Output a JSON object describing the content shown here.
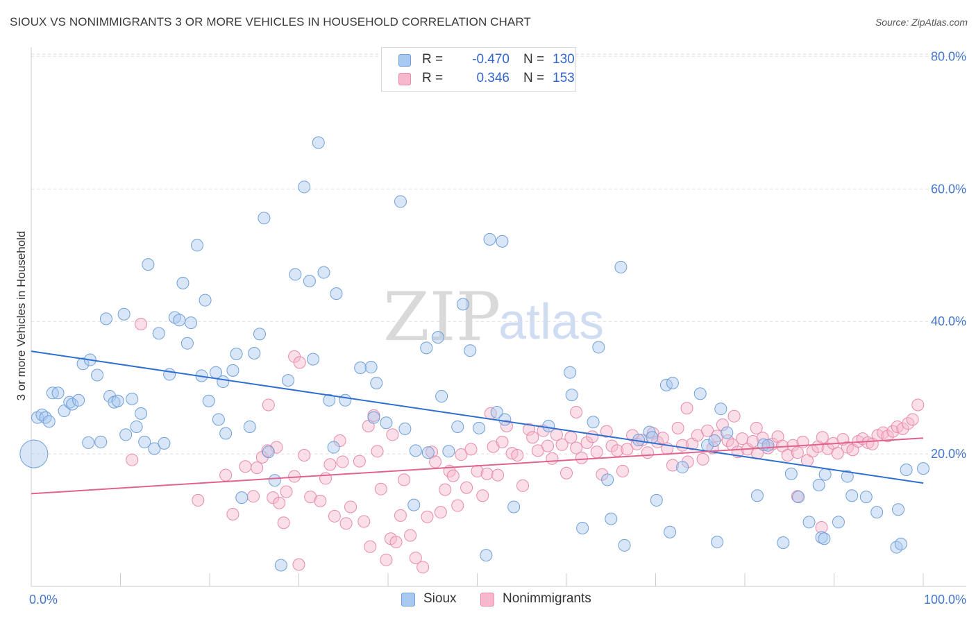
{
  "title": "SIOUX VS NONIMMIGRANTS 3 OR MORE VEHICLES IN HOUSEHOLD CORRELATION CHART",
  "source": "Source: ZipAtlas.com",
  "watermark": {
    "zip": "ZIP",
    "atlas": "atlas"
  },
  "legend": {
    "rows": [
      {
        "r_label": "R =",
        "r_value": "-0.470",
        "n_label": "N =",
        "n_value": "130"
      },
      {
        "r_label": "R =",
        "r_value": "0.346",
        "n_label": "N =",
        "n_value": "153"
      }
    ]
  },
  "bottom_legend": {
    "sioux": "Sioux",
    "nonimmigrants": "Nonimmigrants"
  },
  "colors": {
    "sioux_fill": "#a9c8ef",
    "sioux_stroke": "#6f9fd8",
    "sioux_line": "#2f6fd0",
    "nonimm_fill": "#f6b8cc",
    "nonimm_stroke": "#e88aa8",
    "nonimm_line": "#e0638f",
    "grid": "#dddddd",
    "axis_label": "#4477cc"
  },
  "chart_data": {
    "type": "scatter",
    "title": "SIOUX VS NONIMMIGRANTS 3 OR MORE VEHICLES IN HOUSEHOLD CORRELATION CHART",
    "xlabel": "",
    "ylabel": "3 or more Vehicles in Household",
    "xlim": [
      0,
      100
    ],
    "ylim": [
      0,
      82
    ],
    "x_tick_labels": [
      "0.0%",
      "100.0%"
    ],
    "y_ticks": [
      20,
      40,
      60,
      80
    ],
    "y_tick_labels": [
      "20.0%",
      "40.0%",
      "60.0%",
      "80.0%"
    ],
    "grid": "horizontal dashed",
    "legend_position": "top-center",
    "series": [
      {
        "name": "Sioux",
        "r": -0.47,
        "n": 130,
        "trend": {
          "x": [
            0,
            100
          ],
          "y": [
            35.5,
            15.6
          ]
        },
        "points": [
          [
            0.3,
            20.0
          ],
          [
            0.7,
            25.5
          ],
          [
            1.2,
            25.9
          ],
          [
            1.6,
            25.5
          ],
          [
            2.0,
            24.9
          ],
          [
            2.4,
            29.2
          ],
          [
            3.0,
            29.2
          ],
          [
            3.7,
            26.5
          ],
          [
            4.3,
            27.8
          ],
          [
            4.6,
            27.5
          ],
          [
            5.3,
            28.1
          ],
          [
            5.8,
            33.6
          ],
          [
            6.6,
            34.2
          ],
          [
            6.4,
            21.7
          ],
          [
            7.4,
            31.9
          ],
          [
            7.8,
            21.8
          ],
          [
            8.4,
            40.4
          ],
          [
            8.8,
            28.7
          ],
          [
            9.3,
            27.8
          ],
          [
            9.7,
            28.0
          ],
          [
            10.4,
            41.1
          ],
          [
            10.6,
            22.9
          ],
          [
            11.3,
            28.3
          ],
          [
            11.8,
            24.1
          ],
          [
            12.3,
            26.1
          ],
          [
            12.7,
            21.8
          ],
          [
            13.1,
            48.6
          ],
          [
            13.8,
            20.8
          ],
          [
            14.3,
            38.2
          ],
          [
            14.9,
            21.6
          ],
          [
            15.5,
            32.0
          ],
          [
            16.1,
            40.6
          ],
          [
            16.6,
            40.2
          ],
          [
            17.0,
            45.8
          ],
          [
            17.5,
            36.7
          ],
          [
            17.9,
            39.8
          ],
          [
            18.6,
            51.5
          ],
          [
            19.1,
            31.8
          ],
          [
            19.5,
            43.2
          ],
          [
            19.9,
            28.0
          ],
          [
            20.7,
            32.3
          ],
          [
            21.0,
            25.2
          ],
          [
            21.5,
            30.9
          ],
          [
            21.8,
            23.1
          ],
          [
            22.6,
            32.6
          ],
          [
            23.0,
            35.1
          ],
          [
            23.6,
            13.4
          ],
          [
            24.5,
            24.1
          ],
          [
            25.0,
            35.2
          ],
          [
            25.6,
            38.1
          ],
          [
            26.1,
            55.6
          ],
          [
            26.6,
            20.3
          ],
          [
            27.3,
            16.0
          ],
          [
            28.0,
            3.2
          ],
          [
            28.8,
            31.1
          ],
          [
            29.6,
            47.1
          ],
          [
            30.6,
            60.3
          ],
          [
            31.2,
            46.1
          ],
          [
            31.6,
            34.3
          ],
          [
            32.2,
            67.0
          ],
          [
            32.8,
            47.4
          ],
          [
            33.4,
            28.1
          ],
          [
            33.9,
            21.0
          ],
          [
            34.2,
            44.2
          ],
          [
            35.2,
            28.1
          ],
          [
            36.9,
            33.0
          ],
          [
            38.1,
            33.1
          ],
          [
            38.7,
            30.7
          ],
          [
            38.4,
            25.5
          ],
          [
            39.8,
            24.7
          ],
          [
            41.4,
            58.1
          ],
          [
            41.9,
            23.8
          ],
          [
            42.9,
            12.3
          ],
          [
            43.1,
            20.5
          ],
          [
            44.3,
            36.0
          ],
          [
            44.5,
            20.2
          ],
          [
            45.6,
            37.6
          ],
          [
            46.0,
            28.7
          ],
          [
            46.8,
            20.4
          ],
          [
            47.8,
            24.1
          ],
          [
            48.4,
            42.6
          ],
          [
            49.2,
            35.6
          ],
          [
            50.2,
            23.9
          ],
          [
            51.0,
            4.7
          ],
          [
            51.4,
            52.4
          ],
          [
            52.2,
            26.3
          ],
          [
            52.8,
            52.1
          ],
          [
            53.1,
            25.2
          ],
          [
            54.1,
            12.0
          ],
          [
            58.0,
            24.2
          ],
          [
            60.4,
            32.3
          ],
          [
            60.6,
            28.9
          ],
          [
            61.8,
            8.8
          ],
          [
            63.0,
            24.8
          ],
          [
            63.6,
            36.1
          ],
          [
            64.6,
            16.1
          ],
          [
            65.0,
            10.2
          ],
          [
            66.1,
            48.2
          ],
          [
            66.5,
            6.2
          ],
          [
            68.1,
            22.1
          ],
          [
            69.3,
            23.3
          ],
          [
            69.6,
            22.5
          ],
          [
            70.1,
            13.0
          ],
          [
            71.2,
            30.4
          ],
          [
            71.6,
            8.2
          ],
          [
            71.9,
            30.7
          ],
          [
            73.0,
            18.0
          ],
          [
            75.0,
            29.1
          ],
          [
            75.8,
            21.3
          ],
          [
            76.6,
            22.0
          ],
          [
            76.9,
            6.7
          ],
          [
            77.3,
            26.8
          ],
          [
            78.0,
            23.2
          ],
          [
            81.4,
            13.7
          ],
          [
            82.1,
            21.4
          ],
          [
            82.6,
            21.3
          ],
          [
            84.3,
            6.6
          ],
          [
            85.2,
            17.0
          ],
          [
            86.0,
            13.5
          ],
          [
            87.2,
            9.7
          ],
          [
            88.3,
            15.3
          ],
          [
            88.6,
            7.4
          ],
          [
            88.9,
            7.2
          ],
          [
            89.0,
            16.9
          ],
          [
            90.5,
            9.7
          ],
          [
            91.5,
            16.6
          ],
          [
            92.0,
            13.7
          ],
          [
            93.6,
            13.5
          ],
          [
            94.8,
            11.2
          ],
          [
            97.0,
            5.9
          ],
          [
            97.2,
            11.6
          ],
          [
            97.5,
            6.4
          ],
          [
            98.1,
            17.6
          ],
          [
            100.0,
            17.8
          ]
        ]
      },
      {
        "name": "Nonimmigrants",
        "r": 0.346,
        "n": 153,
        "trend": {
          "x": [
            0,
            100
          ],
          "y": [
            14.0,
            22.4
          ]
        },
        "points": [
          [
            11.3,
            19.1
          ],
          [
            12.3,
            39.6
          ],
          [
            18.7,
            13.0
          ],
          [
            21.8,
            16.8
          ],
          [
            22.6,
            10.9
          ],
          [
            24.0,
            18.1
          ],
          [
            24.9,
            13.6
          ],
          [
            25.3,
            17.9
          ],
          [
            25.9,
            19.5
          ],
          [
            26.6,
            27.4
          ],
          [
            27.1,
            13.4
          ],
          [
            27.5,
            21.0
          ],
          [
            28.3,
            9.6
          ],
          [
            28.6,
            14.3
          ],
          [
            29.5,
            16.6
          ],
          [
            30.0,
            3.3
          ],
          [
            30.6,
            19.8
          ],
          [
            31.3,
            13.5
          ],
          [
            32.4,
            12.9
          ],
          [
            33.0,
            16.3
          ],
          [
            33.5,
            18.4
          ],
          [
            34.0,
            10.6
          ],
          [
            34.6,
            22.0
          ],
          [
            34.9,
            18.8
          ],
          [
            35.3,
            9.5
          ],
          [
            35.8,
            12.0
          ],
          [
            36.8,
            18.9
          ],
          [
            37.3,
            9.8
          ],
          [
            38.0,
            6.0
          ],
          [
            38.4,
            25.8
          ],
          [
            37.8,
            24.2
          ],
          [
            38.8,
            20.4
          ],
          [
            39.2,
            14.7
          ],
          [
            39.8,
            4.0
          ],
          [
            40.3,
            7.2
          ],
          [
            40.9,
            6.7
          ],
          [
            41.4,
            10.7
          ],
          [
            41.8,
            16.1
          ],
          [
            42.5,
            7.7
          ],
          [
            43.1,
            4.3
          ],
          [
            43.9,
            2.9
          ],
          [
            44.4,
            10.5
          ],
          [
            44.9,
            20.3
          ],
          [
            45.3,
            18.8
          ],
          [
            45.9,
            11.2
          ],
          [
            46.4,
            14.6
          ],
          [
            46.9,
            17.4
          ],
          [
            47.3,
            16.7
          ],
          [
            47.8,
            12.2
          ],
          [
            48.2,
            19.9
          ],
          [
            48.8,
            14.9
          ],
          [
            49.3,
            20.7
          ],
          [
            50.0,
            17.4
          ],
          [
            50.6,
            13.7
          ],
          [
            51.1,
            17.0
          ],
          [
            51.5,
            26.1
          ],
          [
            51.8,
            21.1
          ],
          [
            52.3,
            16.8
          ],
          [
            52.8,
            21.8
          ],
          [
            53.3,
            24.2
          ],
          [
            53.9,
            20.1
          ],
          [
            54.5,
            19.8
          ],
          [
            55.1,
            15.2
          ],
          [
            55.8,
            23.7
          ],
          [
            56.2,
            22.5
          ],
          [
            56.8,
            20.5
          ],
          [
            57.4,
            23.5
          ],
          [
            57.9,
            21.2
          ],
          [
            58.4,
            19.3
          ],
          [
            58.9,
            22.9
          ],
          [
            59.5,
            21.4
          ],
          [
            60.0,
            17.1
          ],
          [
            60.5,
            22.5
          ],
          [
            61.1,
            20.9
          ],
          [
            61.7,
            19.4
          ],
          [
            62.3,
            21.7
          ],
          [
            62.9,
            22.6
          ],
          [
            63.4,
            20.3
          ],
          [
            64.0,
            16.9
          ],
          [
            64.5,
            23.4
          ],
          [
            65.1,
            21.2
          ],
          [
            65.7,
            20.5
          ],
          [
            66.3,
            17.4
          ],
          [
            66.8,
            20.7
          ],
          [
            67.4,
            22.8
          ],
          [
            67.9,
            21.5
          ],
          [
            68.5,
            22.1
          ],
          [
            69.1,
            20.2
          ],
          [
            69.7,
            23.1
          ],
          [
            70.2,
            21.8
          ],
          [
            70.8,
            22.4
          ],
          [
            71.3,
            20.8
          ],
          [
            71.9,
            18.3
          ],
          [
            72.5,
            23.9
          ],
          [
            73.0,
            21.3
          ],
          [
            73.6,
            18.8
          ],
          [
            74.1,
            21.5
          ],
          [
            74.7,
            22.8
          ],
          [
            75.3,
            19.2
          ],
          [
            75.8,
            23.5
          ],
          [
            76.4,
            20.9
          ],
          [
            76.9,
            22.7
          ],
          [
            77.5,
            24.4
          ],
          [
            78.1,
            22.0
          ],
          [
            78.6,
            21.4
          ],
          [
            79.2,
            20.3
          ],
          [
            79.7,
            22.3
          ],
          [
            80.3,
            20.7
          ],
          [
            80.9,
            21.9
          ],
          [
            81.4,
            20.1
          ],
          [
            82.0,
            22.4
          ],
          [
            82.6,
            20.9
          ],
          [
            83.1,
            21.5
          ],
          [
            83.7,
            22.6
          ],
          [
            84.2,
            21.2
          ],
          [
            84.8,
            19.8
          ],
          [
            85.4,
            21.3
          ],
          [
            85.9,
            20.2
          ],
          [
            86.5,
            21.8
          ],
          [
            87.0,
            19.0
          ],
          [
            87.6,
            20.4
          ],
          [
            88.2,
            21.1
          ],
          [
            88.7,
            22.5
          ],
          [
            89.3,
            20.8
          ],
          [
            89.9,
            21.6
          ],
          [
            90.4,
            20.1
          ],
          [
            91.0,
            22.2
          ],
          [
            91.5,
            21.0
          ],
          [
            92.1,
            20.6
          ],
          [
            92.7,
            21.9
          ],
          [
            93.2,
            22.3
          ],
          [
            93.8,
            21.7
          ],
          [
            94.3,
            21.5
          ],
          [
            94.9,
            22.8
          ],
          [
            95.5,
            23.2
          ],
          [
            96.0,
            22.7
          ],
          [
            96.6,
            23.4
          ],
          [
            97.1,
            24.1
          ],
          [
            97.7,
            23.8
          ],
          [
            98.3,
            24.6
          ],
          [
            98.8,
            25.2
          ],
          [
            99.4,
            27.4
          ],
          [
            81.3,
            23.9
          ],
          [
            85.9,
            13.6
          ],
          [
            88.6,
            8.9
          ],
          [
            73.5,
            26.9
          ],
          [
            78.8,
            25.7
          ],
          [
            61.1,
            26.3
          ],
          [
            29.5,
            34.7
          ],
          [
            30.1,
            33.8
          ],
          [
            27.8,
            12.6
          ],
          [
            26.5,
            20.5
          ],
          [
            40.5,
            22.9
          ]
        ]
      }
    ]
  }
}
